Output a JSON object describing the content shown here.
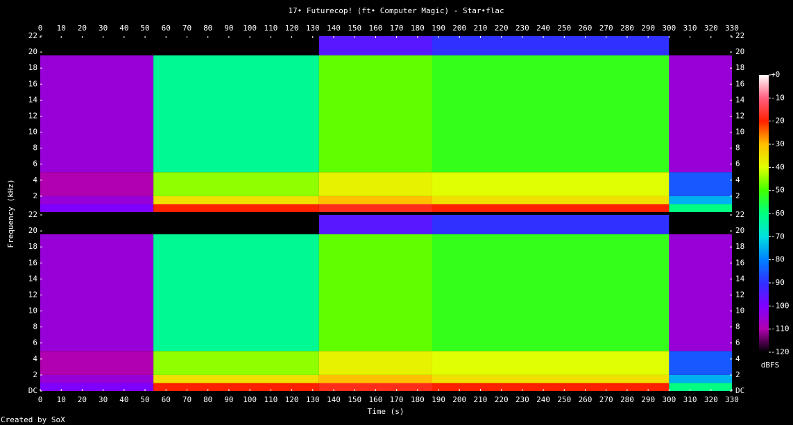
{
  "chart_data": {
    "type": "spectrogram",
    "title": "17• Futurecop! (ft• Computer Magic) - Star•flac",
    "xlabel": "Time (s)",
    "ylabel": "Frequency (kHz)",
    "zlabel": "dBFS",
    "footer": "Created by SoX",
    "x": [
      0,
      54,
      133,
      187,
      300,
      330
    ],
    "y": [
      0,
      1,
      2,
      5,
      19.6,
      22
    ],
    "series": [
      {
        "z": [
          [
            -100,
            -20,
            -18,
            -20,
            -60
          ],
          [
            -105,
            -35,
            -30,
            -35,
            -75
          ],
          [
            -110,
            -45,
            -38,
            -40,
            -85
          ],
          [
            -105,
            -62,
            -48,
            -52,
            -105
          ],
          [
            -120,
            -120,
            -95,
            -90,
            -120
          ]
        ]
      },
      {
        "z": [
          [
            -100,
            -20,
            -18,
            -20,
            -60
          ],
          [
            -105,
            -35,
            -30,
            -35,
            -75
          ],
          [
            -110,
            -45,
            -38,
            -40,
            -85
          ],
          [
            -105,
            -62,
            -48,
            -52,
            -105
          ],
          [
            -120,
            -120,
            -95,
            -90,
            -120
          ]
        ]
      }
    ],
    "xlim": [
      0,
      330
    ],
    "xticks": [
      0,
      10,
      20,
      30,
      40,
      50,
      60,
      70,
      80,
      90,
      100,
      110,
      120,
      130,
      140,
      150,
      160,
      170,
      180,
      190,
      200,
      210,
      220,
      230,
      240,
      250,
      260,
      270,
      280,
      290,
      300,
      310,
      320,
      330
    ],
    "ylim": [
      0,
      22
    ],
    "yticks": [
      {
        "value": 0,
        "label": "DC"
      },
      2,
      4,
      6,
      8,
      10,
      12,
      14,
      16,
      18,
      20,
      22
    ],
    "zlim": [
      -120,
      0
    ],
    "zticks": [
      {
        "value": 0,
        "label": "+0"
      },
      -10,
      -20,
      -30,
      -40,
      -50,
      -60,
      -70,
      -80,
      -90,
      -100,
      -110,
      -120
    ],
    "colormap": [
      "#000000",
      "#b000b0",
      "#8000ff",
      "#3030ff",
      "#0080ff",
      "#00e0e0",
      "#00ff80",
      "#40ff00",
      "#e0ff00",
      "#ffc000",
      "#ff2000",
      "#ff6080",
      "#ffffff"
    ]
  }
}
